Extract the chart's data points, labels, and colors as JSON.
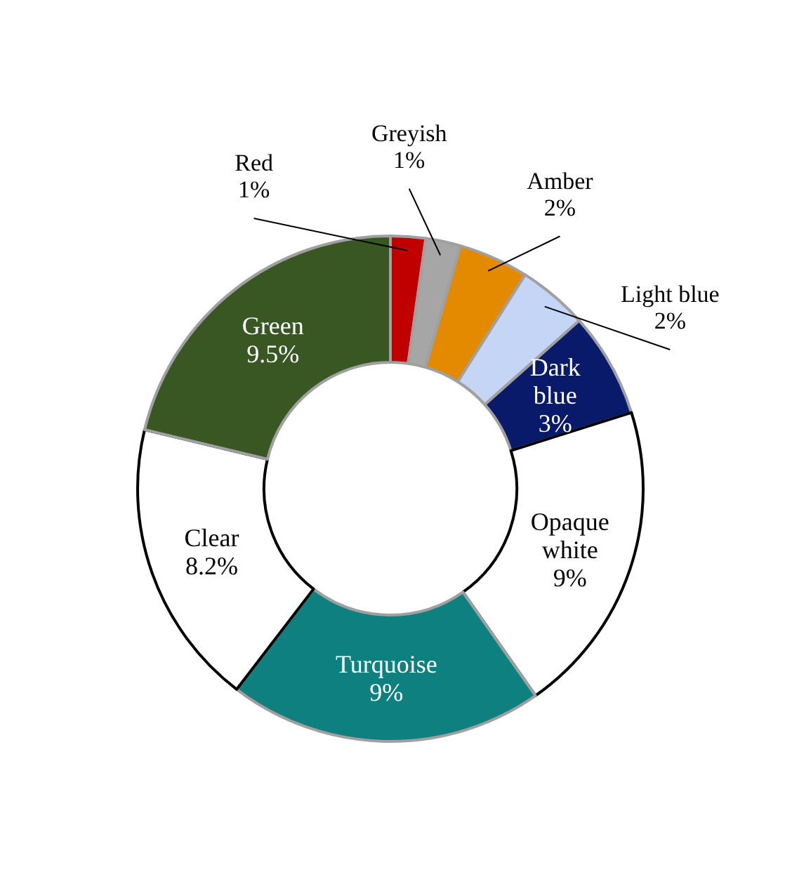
{
  "chart_data": {
    "type": "donut",
    "categories": [
      "Red",
      "Greyish",
      "Amber",
      "Light blue",
      "Dark blue",
      "Opaque white",
      "Turquoise",
      "Clear",
      "Green"
    ],
    "values": [
      1,
      1,
      2,
      2,
      3,
      9,
      9,
      8.2,
      9.5
    ],
    "value_labels": [
      "1%",
      "1%",
      "2%",
      "2%",
      "3%",
      "9%",
      "9%",
      "8.2%",
      "9.5%"
    ],
    "colors": [
      "#c00000",
      "#a6a6a6",
      "#e38a00",
      "#c5d5f5",
      "#0a1a6a",
      "#ffffff",
      "#0e8080",
      "#ffffff",
      "#385723"
    ]
  }
}
